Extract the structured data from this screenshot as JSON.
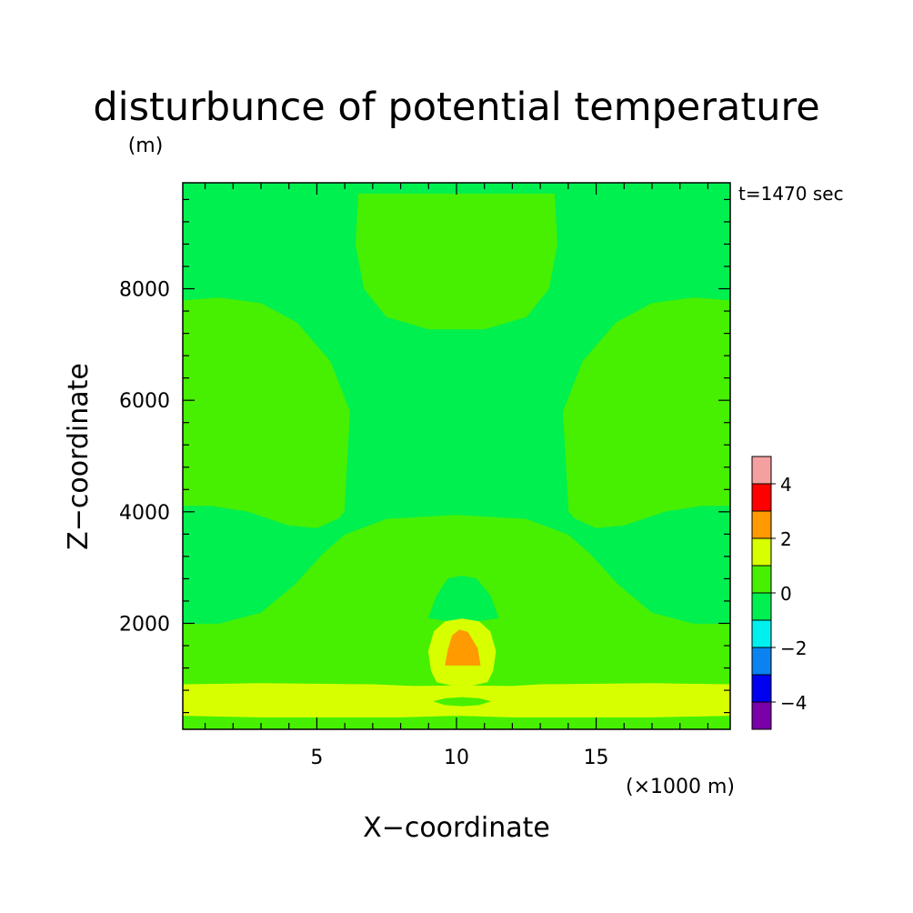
{
  "chart_data": {
    "type": "heatmap",
    "title": "disturbunce of potential temperature",
    "unit_label": "(m)",
    "time_label": "t=1470 sec",
    "xlabel": "X−coordinate",
    "ylabel": "Z−coordinate",
    "x_unit_label": "(×1000 m)",
    "xlim": [
      0.2,
      19.8
    ],
    "ylim": [
      100,
      9900
    ],
    "x_ticks": [
      5,
      10,
      15
    ],
    "x_tick_labels": [
      "5",
      "10",
      "15"
    ],
    "y_ticks": [
      2000,
      4000,
      6000,
      8000
    ],
    "y_tick_labels": [
      "2000",
      "4000",
      "6000",
      "8000"
    ],
    "x_minor_step": 1,
    "y_minor_step": 400,
    "colorbar": {
      "levels": [
        -5,
        -4,
        -3,
        -2,
        -1,
        0,
        1,
        2,
        3,
        4,
        5
      ],
      "tick_values": [
        -4,
        -2,
        0,
        2,
        4
      ],
      "tick_labels": [
        "−4",
        "−2",
        "0",
        "2",
        "4"
      ],
      "colors": [
        "#7a00a8",
        "#0000f0",
        "#0a82f0",
        "#00f0f0",
        "#00f050",
        "#46f000",
        "#d8ff00",
        "#ff9a00",
        "#ff0000",
        "#f4a0a0"
      ]
    },
    "regions": [
      {
        "level": "0 to 1",
        "color": "#46f000",
        "points": [
          [
            0.2,
            100
          ],
          [
            19.8,
            100
          ],
          [
            19.8,
            9900
          ],
          [
            0.2,
            9900
          ]
        ]
      },
      {
        "level": "-1 to 0",
        "color": "#00f050",
        "points": [
          [
            0.2,
            4100
          ],
          [
            1.2,
            4100
          ],
          [
            2.5,
            4000
          ],
          [
            4,
            3750
          ],
          [
            5,
            3700
          ],
          [
            5.8,
            3880
          ],
          [
            6,
            4000
          ],
          [
            6.2,
            5800
          ],
          [
            5.5,
            6700
          ],
          [
            4.3,
            7400
          ],
          [
            3,
            7750
          ],
          [
            1.5,
            7850
          ],
          [
            0.2,
            7800
          ],
          [
            0.2,
            9900
          ],
          [
            19.8,
            9900
          ],
          [
            19.8,
            7800
          ],
          [
            18.5,
            7850
          ],
          [
            17,
            7750
          ],
          [
            15.7,
            7400
          ],
          [
            14.5,
            6700
          ],
          [
            13.8,
            5800
          ],
          [
            14,
            4000
          ],
          [
            14.2,
            3880
          ],
          [
            15,
            3700
          ],
          [
            16,
            3750
          ],
          [
            17.5,
            4000
          ],
          [
            18.8,
            4100
          ],
          [
            19.8,
            4100
          ],
          [
            19.8,
            2000
          ],
          [
            18.5,
            2000
          ],
          [
            17,
            2200
          ],
          [
            15.8,
            2700
          ],
          [
            14.8,
            3250
          ],
          [
            14,
            3600
          ],
          [
            12.5,
            3880
          ],
          [
            10,
            3950
          ],
          [
            7.5,
            3880
          ],
          [
            6,
            3600
          ],
          [
            5.2,
            3250
          ],
          [
            4.2,
            2700
          ],
          [
            3,
            2200
          ],
          [
            1.5,
            2000
          ],
          [
            0.2,
            2000
          ]
        ]
      },
      {
        "level": "0 to 1",
        "color": "#46f000",
        "points": [
          [
            6.5,
            9700
          ],
          [
            13.5,
            9700
          ],
          [
            13.6,
            8800
          ],
          [
            13.3,
            8000
          ],
          [
            12.5,
            7500
          ],
          [
            11,
            7280
          ],
          [
            9,
            7280
          ],
          [
            7.5,
            7500
          ],
          [
            6.7,
            8000
          ],
          [
            6.4,
            8800
          ]
        ]
      },
      {
        "level": "-1 to 0",
        "color": "#00f050",
        "points": [
          [
            9,
            2100
          ],
          [
            9.3,
            2500
          ],
          [
            9.7,
            2800
          ],
          [
            10.2,
            2850
          ],
          [
            10.7,
            2800
          ],
          [
            11.2,
            2500
          ],
          [
            11.5,
            2100
          ],
          [
            10.2,
            2000
          ]
        ]
      },
      {
        "level": "1 to 2",
        "color": "#d8ff00",
        "points": [
          [
            9,
            1500
          ],
          [
            9.2,
            1850
          ],
          [
            9.6,
            2030
          ],
          [
            10.2,
            2080
          ],
          [
            10.8,
            2030
          ],
          [
            11.2,
            1850
          ],
          [
            11.4,
            1500
          ],
          [
            11.3,
            1150
          ],
          [
            11.1,
            950
          ],
          [
            10.2,
            850
          ],
          [
            9.3,
            950
          ],
          [
            9.1,
            1150
          ]
        ]
      },
      {
        "level": "1 to 2",
        "color": "#d8ff00",
        "points": [
          [
            0.2,
            350
          ],
          [
            3,
            320
          ],
          [
            8,
            320
          ],
          [
            10,
            350
          ],
          [
            12,
            320
          ],
          [
            17,
            320
          ],
          [
            19.8,
            350
          ],
          [
            19.8,
            900
          ],
          [
            17,
            920
          ],
          [
            13,
            900
          ],
          [
            12,
            870
          ],
          [
            10.2,
            880
          ],
          [
            8.5,
            870
          ],
          [
            7,
            900
          ],
          [
            3,
            920
          ],
          [
            0.2,
            900
          ]
        ]
      },
      {
        "level": "0 to 1",
        "color": "#46f000",
        "points": [
          [
            9.2,
            600
          ],
          [
            9.6,
            650
          ],
          [
            10.2,
            670
          ],
          [
            10.8,
            650
          ],
          [
            11.2,
            600
          ],
          [
            10.8,
            540
          ],
          [
            10.2,
            520
          ],
          [
            9.6,
            540
          ]
        ]
      },
      {
        "level": "2 to 3",
        "color": "#ff9a00",
        "points": [
          [
            9.6,
            1250
          ],
          [
            9.7,
            1520
          ],
          [
            9.85,
            1780
          ],
          [
            10.1,
            1880
          ],
          [
            10.4,
            1840
          ],
          [
            10.75,
            1550
          ],
          [
            10.85,
            1250
          ]
        ]
      }
    ]
  }
}
